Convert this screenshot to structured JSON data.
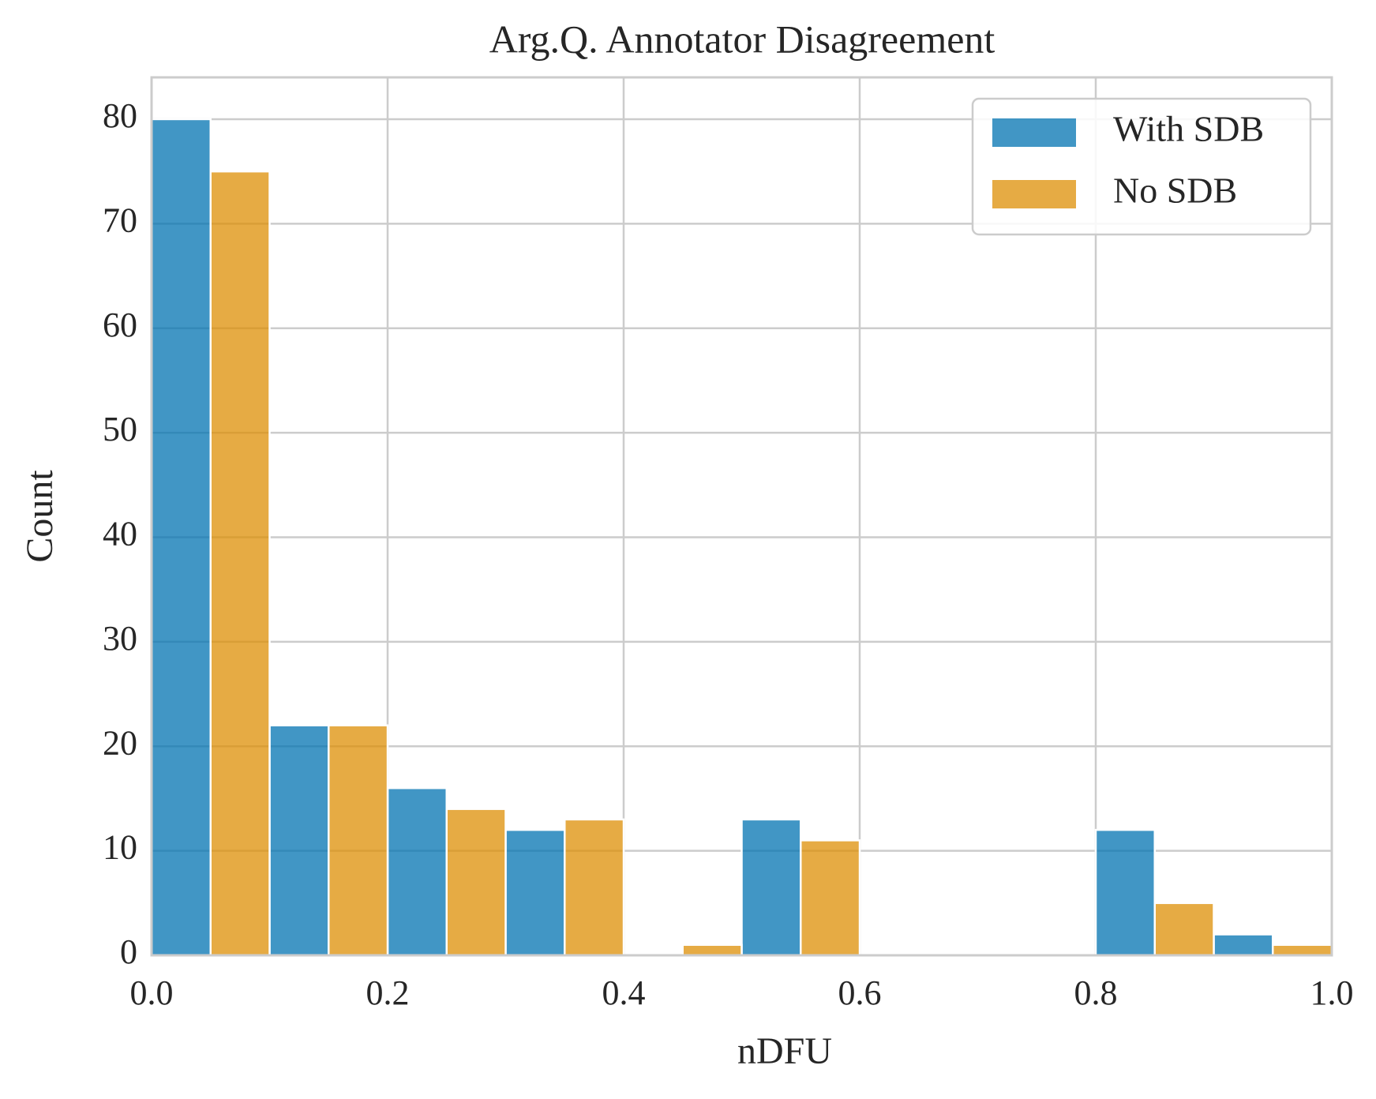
{
  "chart_data": {
    "type": "histogram",
    "title": "Arg.Q. Annotator Disagreement",
    "xlabel": "nDFU",
    "ylabel": "Count",
    "bins": [
      0.0,
      0.1,
      0.2,
      0.3,
      0.4,
      0.5,
      0.6,
      0.7,
      0.8,
      0.9,
      1.0
    ],
    "series": [
      {
        "name": "With SDB",
        "color": "#0173b2",
        "values": [
          80,
          22,
          16,
          12,
          0,
          13,
          0,
          0,
          12,
          2
        ]
      },
      {
        "name": "No SDB",
        "color": "#de8f05",
        "values": [
          75,
          22,
          14,
          13,
          1,
          11,
          0,
          0,
          5,
          1
        ]
      }
    ],
    "xlim": [
      0,
      1
    ],
    "xticks": [
      {
        "value": 0,
        "label": "0.0"
      },
      0.2,
      0.4,
      0.6,
      0.8,
      {
        "value": 1,
        "label": "1.0"
      }
    ],
    "ylim": [
      0,
      84
    ],
    "yticks": [
      0,
      10,
      20,
      30,
      40,
      50,
      60,
      70,
      80
    ],
    "grid": true,
    "legend": "upper right"
  }
}
